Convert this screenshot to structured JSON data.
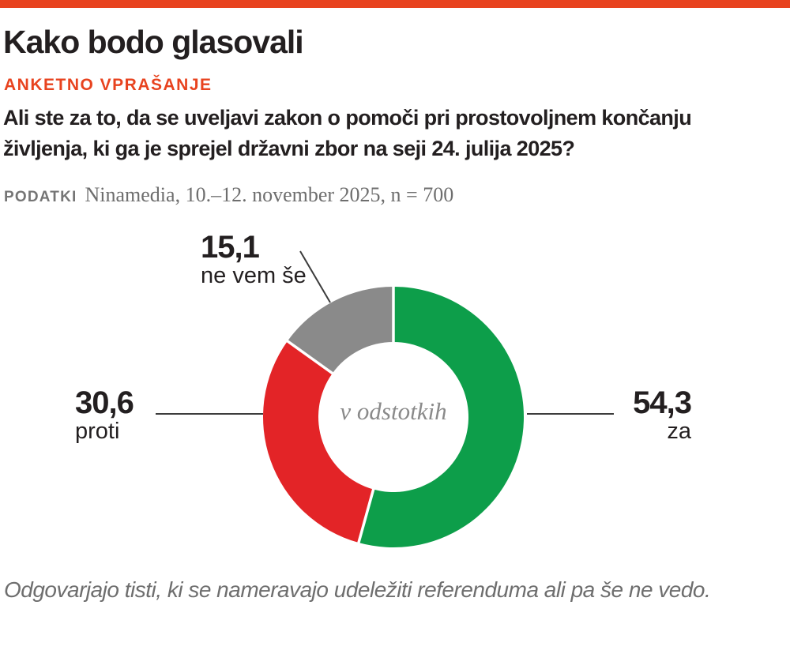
{
  "header": {
    "title": "Kako bodo glasovali",
    "kicker": "ANKETNO VPRAŠANJE",
    "question": "Ali ste za to, da se uveljavi zakon o pomoči pri prostovoljnem končanju življenja, ki ga je sprejel državni zbor na seji 24. julija 2025?",
    "source_label": "PODATKI",
    "source_text": "Ninamedia, 10.–12. november 2025, n = 700"
  },
  "chart_data": {
    "type": "pie",
    "subtype": "donut",
    "title": "Kako bodo glasovali",
    "unit": "percent",
    "center_label": "v odstotkih",
    "start_angle_deg": 0,
    "direction": "clockwise",
    "slices": [
      {
        "label": "za",
        "value": 54.3,
        "display": "54,3",
        "color": "#0d9e4a"
      },
      {
        "label": "proti",
        "value": 30.6,
        "display": "30,6",
        "color": "#e32427"
      },
      {
        "label": "ne vem še",
        "value": 15.1,
        "display": "15,1",
        "color": "#8a8a8a"
      }
    ]
  },
  "footer": {
    "note": "Odgovarjajo tisti, ki se nameravajo udeležiti referenduma ali pa še ne vedo."
  },
  "colors": {
    "accent": "#e8431f",
    "text_dark": "#231f20",
    "text_gray": "#6e6e6e",
    "callout_line": "#3c3c3c"
  }
}
